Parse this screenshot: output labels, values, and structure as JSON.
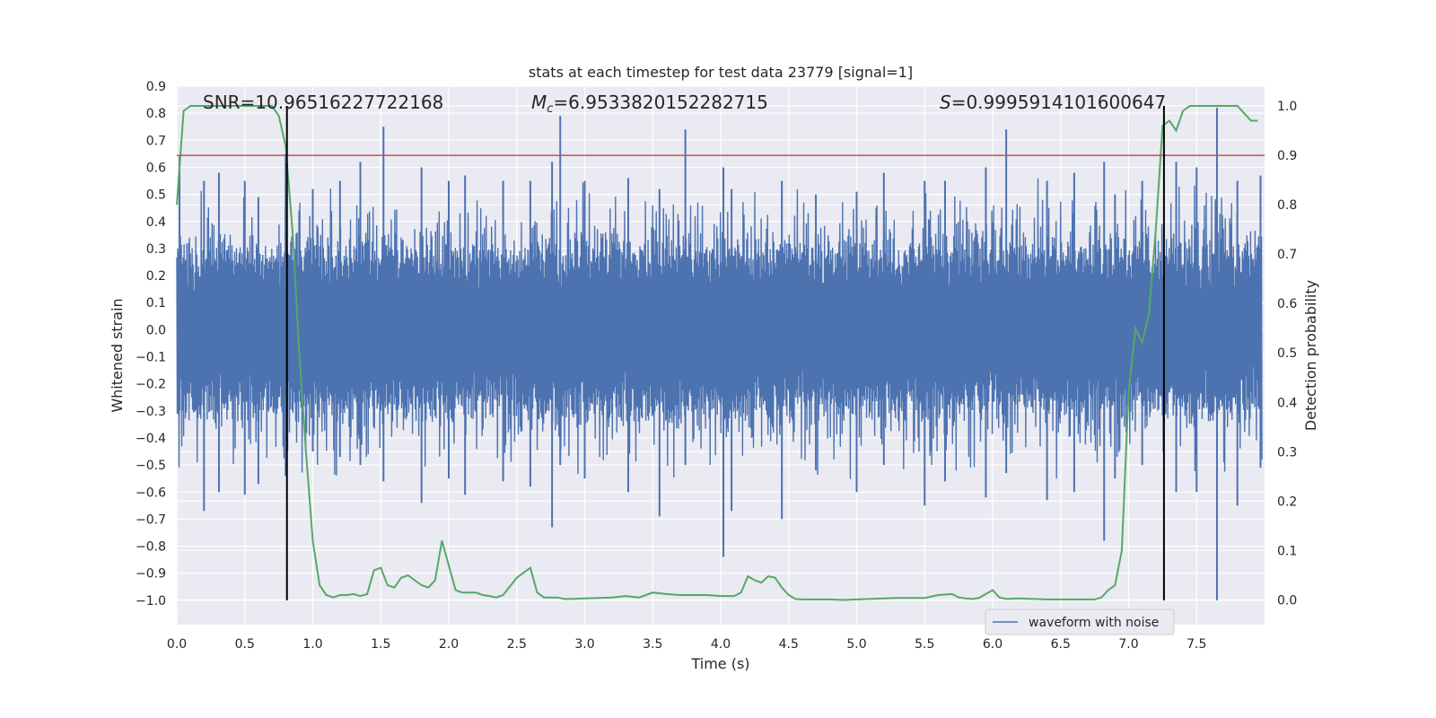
{
  "chart_data": {
    "type": "line",
    "title": "stats at each timestep for test data 23779 [signal=1]",
    "xlabel": "Time (s)",
    "ylabel": "Whitened strain",
    "y2label": "Detection probability",
    "xlim": [
      0.0,
      8.0
    ],
    "ylim": [
      -1.09,
      0.9
    ],
    "y2lim": [
      -0.05,
      1.04
    ],
    "xticks": [
      0.0,
      0.5,
      1.0,
      1.5,
      2.0,
      2.5,
      3.0,
      3.5,
      4.0,
      4.5,
      5.0,
      5.5,
      6.0,
      6.5,
      7.0,
      7.5
    ],
    "yticks": [
      0.9,
      0.8,
      0.7,
      0.6,
      0.5,
      0.4,
      0.3,
      0.2,
      0.1,
      0.0,
      -0.1,
      -0.2,
      -0.3,
      -0.4,
      -0.5,
      -0.6,
      -0.7,
      -0.8,
      -0.9,
      -1.0
    ],
    "y2ticks": [
      1.0,
      0.9,
      0.8,
      0.7,
      0.6,
      0.5,
      0.4,
      0.3,
      0.2,
      0.1,
      0.0
    ],
    "annotations": {
      "snr": "SNR=10.96516227722168",
      "mc_symbol": "M",
      "mc_sub": "c",
      "mc_value": "=6.9533820152282715",
      "s_symbol": "S",
      "s_value": "=0.9995914101600647"
    },
    "threshold": {
      "y2": 0.9,
      "color": "#c44e52"
    },
    "vlines": [
      0.81,
      7.26
    ],
    "waveform": {
      "name": "waveform with noise",
      "color": "#4c72b0",
      "envelope": 0.27,
      "spikes": [
        [
          0.02,
          0.64,
          -0.3
        ],
        [
          0.2,
          0.55,
          -0.67
        ],
        [
          0.31,
          0.58,
          -0.6
        ],
        [
          0.5,
          0.55,
          -0.61
        ],
        [
          0.6,
          0.49,
          -0.57
        ],
        [
          0.8,
          0.65,
          -0.54
        ],
        [
          1.0,
          0.52,
          -0.45
        ],
        [
          1.2,
          0.55,
          -0.47
        ],
        [
          1.35,
          0.62,
          -0.5
        ],
        [
          1.52,
          0.75,
          -0.56
        ],
        [
          1.8,
          0.6,
          -0.64
        ],
        [
          2.0,
          0.55,
          -0.55
        ],
        [
          2.12,
          0.57,
          -0.61
        ],
        [
          2.4,
          0.55,
          -0.56
        ],
        [
          2.6,
          0.55,
          -0.58
        ],
        [
          2.76,
          0.62,
          -0.73
        ],
        [
          2.82,
          0.79,
          -0.5
        ],
        [
          3.0,
          0.55,
          -0.55
        ],
        [
          3.32,
          0.56,
          -0.6
        ],
        [
          3.55,
          0.52,
          -0.69
        ],
        [
          3.74,
          0.74,
          -0.5
        ],
        [
          4.02,
          0.6,
          -0.84
        ],
        [
          4.08,
          0.52,
          -0.67
        ],
        [
          4.45,
          0.55,
          -0.7
        ],
        [
          4.7,
          0.5,
          -0.52
        ],
        [
          5.0,
          0.51,
          -0.6
        ],
        [
          5.2,
          0.58,
          -0.5
        ],
        [
          5.5,
          0.55,
          -0.65
        ],
        [
          5.65,
          0.55,
          -0.56
        ],
        [
          5.95,
          0.6,
          -0.62
        ],
        [
          6.1,
          0.74,
          -0.53
        ],
        [
          6.4,
          0.55,
          -0.63
        ],
        [
          6.6,
          0.58,
          -0.6
        ],
        [
          6.82,
          0.62,
          -0.78
        ],
        [
          6.9,
          0.5,
          -0.55
        ],
        [
          7.1,
          0.55,
          -0.5
        ],
        [
          7.35,
          0.62,
          -0.6
        ],
        [
          7.5,
          0.6,
          -0.6
        ],
        [
          7.65,
          0.82,
          -1.0
        ],
        [
          7.8,
          0.55,
          -0.65
        ],
        [
          7.97,
          0.57,
          -0.51
        ]
      ]
    },
    "probability": {
      "name": "detection probability",
      "color": "#55a868",
      "x": [
        0.0,
        0.05,
        0.1,
        0.15,
        0.2,
        0.3,
        0.4,
        0.5,
        0.6,
        0.65,
        0.7,
        0.75,
        0.8,
        0.85,
        0.9,
        0.95,
        1.0,
        1.05,
        1.1,
        1.15,
        1.2,
        1.25,
        1.3,
        1.35,
        1.4,
        1.45,
        1.5,
        1.55,
        1.6,
        1.65,
        1.7,
        1.75,
        1.8,
        1.85,
        1.9,
        1.95,
        2.0,
        2.05,
        2.1,
        2.15,
        2.2,
        2.25,
        2.3,
        2.35,
        2.4,
        2.5,
        2.6,
        2.65,
        2.7,
        2.75,
        2.8,
        2.85,
        2.9,
        3.0,
        3.1,
        3.2,
        3.3,
        3.4,
        3.45,
        3.5,
        3.6,
        3.7,
        3.8,
        3.9,
        4.0,
        4.1,
        4.15,
        4.2,
        4.25,
        4.3,
        4.35,
        4.4,
        4.45,
        4.5,
        4.55,
        4.6,
        4.7,
        4.8,
        4.9,
        5.0,
        5.1,
        5.2,
        5.3,
        5.4,
        5.5,
        5.6,
        5.7,
        5.75,
        5.8,
        5.85,
        5.9,
        5.95,
        6.0,
        6.05,
        6.1,
        6.2,
        6.3,
        6.4,
        6.5,
        6.6,
        6.7,
        6.75,
        6.8,
        6.85,
        6.9,
        6.95,
        7.0,
        7.05,
        7.1,
        7.15,
        7.2,
        7.25,
        7.3,
        7.35,
        7.4,
        7.45,
        7.5,
        7.55,
        7.6,
        7.7,
        7.8,
        7.9,
        7.95
      ],
      "y": [
        0.8,
        0.99,
        1.0,
        1.0,
        1.0,
        1.0,
        1.0,
        1.0,
        1.0,
        1.0,
        1.0,
        0.98,
        0.92,
        0.75,
        0.5,
        0.3,
        0.12,
        0.03,
        0.01,
        0.005,
        0.01,
        0.01,
        0.012,
        0.008,
        0.012,
        0.06,
        0.065,
        0.03,
        0.025,
        0.045,
        0.05,
        0.04,
        0.03,
        0.025,
        0.04,
        0.12,
        0.07,
        0.02,
        0.015,
        0.015,
        0.015,
        0.01,
        0.008,
        0.005,
        0.01,
        0.045,
        0.065,
        0.015,
        0.005,
        0.005,
        0.005,
        0.002,
        0.002,
        0.003,
        0.004,
        0.005,
        0.008,
        0.005,
        0.01,
        0.015,
        0.012,
        0.01,
        0.01,
        0.01,
        0.008,
        0.008,
        0.015,
        0.048,
        0.04,
        0.035,
        0.048,
        0.045,
        0.025,
        0.01,
        0.002,
        0.001,
        0.001,
        0.001,
        0.0,
        0.001,
        0.002,
        0.003,
        0.004,
        0.004,
        0.004,
        0.01,
        0.012,
        0.005,
        0.003,
        0.002,
        0.004,
        0.012,
        0.02,
        0.005,
        0.002,
        0.003,
        0.002,
        0.001,
        0.001,
        0.001,
        0.001,
        0.001,
        0.005,
        0.02,
        0.03,
        0.1,
        0.42,
        0.55,
        0.52,
        0.58,
        0.75,
        0.96,
        0.97,
        0.95,
        0.99,
        1.0,
        1.0,
        1.0,
        1.0,
        1.0,
        1.0,
        0.97,
        0.97
      ]
    },
    "legend": {
      "label": "waveform with noise",
      "location": "lower-right"
    },
    "grid": true
  }
}
